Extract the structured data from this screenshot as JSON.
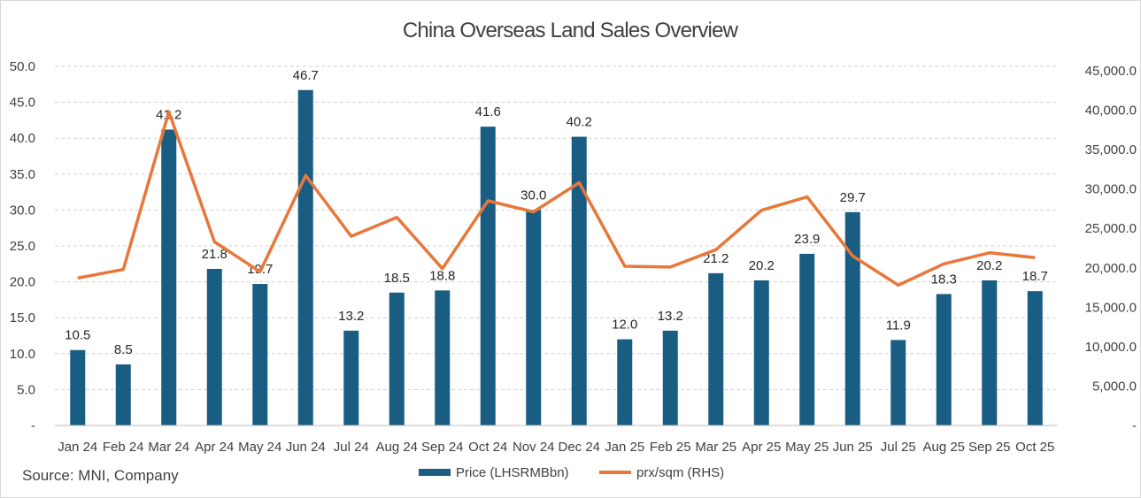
{
  "chart_data": {
    "type": "bar",
    "title": "China Overseas Land Sales Overview",
    "source": "Source: MNI, Company",
    "categories": [
      "Jan 24",
      "Feb 24",
      "Mar 24",
      "Apr 24",
      "May 24",
      "Jun 24",
      "Jul 24",
      "Aug 24",
      "Sep 24",
      "Oct 24",
      "Nov 24",
      "Dec 24",
      "Jan 25",
      "Feb 25",
      "Mar 25",
      "Apr 25",
      "May 25",
      "Jun 25",
      "Jul 25",
      "Aug 25",
      "Sep 25",
      "Oct 25"
    ],
    "series": [
      {
        "name": "Price (LHSRMBbn)",
        "type": "bar",
        "axis": "left",
        "color": "#1a5d83",
        "values": [
          10.5,
          8.5,
          41.2,
          21.8,
          19.7,
          46.7,
          13.2,
          18.5,
          18.8,
          41.6,
          30.0,
          40.2,
          12.0,
          13.2,
          21.2,
          20.2,
          23.9,
          29.7,
          11.9,
          18.3,
          20.2,
          18.7
        ],
        "labels": [
          "10.5",
          "8.5",
          "41.2",
          "21.8",
          "19.7",
          "46.7",
          "13.2",
          "18.5",
          "18.8",
          "41.6",
          "30.0",
          "40.2",
          "12.0",
          "13.2",
          "21.2",
          "20.2",
          "23.9",
          "29.7",
          "11.9",
          "18.3",
          "20.2",
          "18.7"
        ]
      },
      {
        "name": "prx/sqm (RHS)",
        "type": "line",
        "axis": "right",
        "color": "#e8773a",
        "values": [
          18700,
          19800,
          39800,
          23300,
          19500,
          31700,
          24000,
          26400,
          19900,
          28500,
          27100,
          30800,
          20200,
          20100,
          22300,
          27300,
          29000,
          21500,
          17800,
          20500,
          21900,
          21300
        ]
      }
    ],
    "y_left": {
      "min": 0,
      "max": 50,
      "step": 5,
      "tick_labels": [
        "-",
        "5.0",
        "10.0",
        "15.0",
        "20.0",
        "25.0",
        "30.0",
        "35.0",
        "40.0",
        "45.0",
        "50.0"
      ]
    },
    "y_right": {
      "min": 0,
      "max": 45000,
      "step": 5000,
      "tick_labels": [
        "-",
        "5,000.0",
        "10,000.0",
        "15,000.0",
        "20,000.0",
        "25,000.0",
        "30,000.0",
        "35,000.0",
        "40,000.0",
        "45,000.0"
      ]
    },
    "gridlines": true,
    "legend_position": "bottom"
  }
}
